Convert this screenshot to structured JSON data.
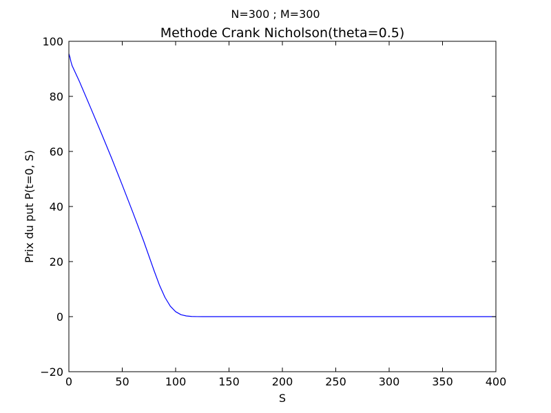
{
  "chart_data": {
    "type": "line",
    "suptitle": "N=300 ; M=300",
    "title": "Methode Crank Nicholson(theta=0.5)",
    "xlabel": "S",
    "ylabel": "Prix du put P(t=0, S)",
    "xlim": [
      0,
      400
    ],
    "ylim": [
      -20,
      100
    ],
    "xticks": [
      0,
      50,
      100,
      150,
      200,
      250,
      300,
      350,
      400
    ],
    "yticks": [
      -20,
      0,
      20,
      40,
      60,
      80,
      100
    ],
    "xtick_labels": [
      "0",
      "50",
      "100",
      "150",
      "200",
      "250",
      "300",
      "350",
      "400"
    ],
    "ytick_labels": [
      "−20",
      "0",
      "20",
      "40",
      "60",
      "80",
      "100"
    ],
    "grid": false,
    "series": [
      {
        "color": "#0000ff",
        "x": [
          0,
          1,
          2,
          3,
          5,
          10,
          20,
          30,
          40,
          50,
          60,
          70,
          75,
          80,
          85,
          90,
          95,
          100,
          105,
          110,
          115,
          120,
          125,
          130,
          150,
          200,
          250,
          300,
          350,
          400
        ],
        "y": [
          95.5,
          94.2,
          92.5,
          91.2,
          89.5,
          85.3,
          76.2,
          67.0,
          57.6,
          47.8,
          37.8,
          27.5,
          22.0,
          16.5,
          11.3,
          7.0,
          3.8,
          1.8,
          0.7,
          0.25,
          0.07,
          0.02,
          0.0,
          0.0,
          0.0,
          0.0,
          0.0,
          0.0,
          0.0,
          0.0
        ]
      }
    ]
  }
}
